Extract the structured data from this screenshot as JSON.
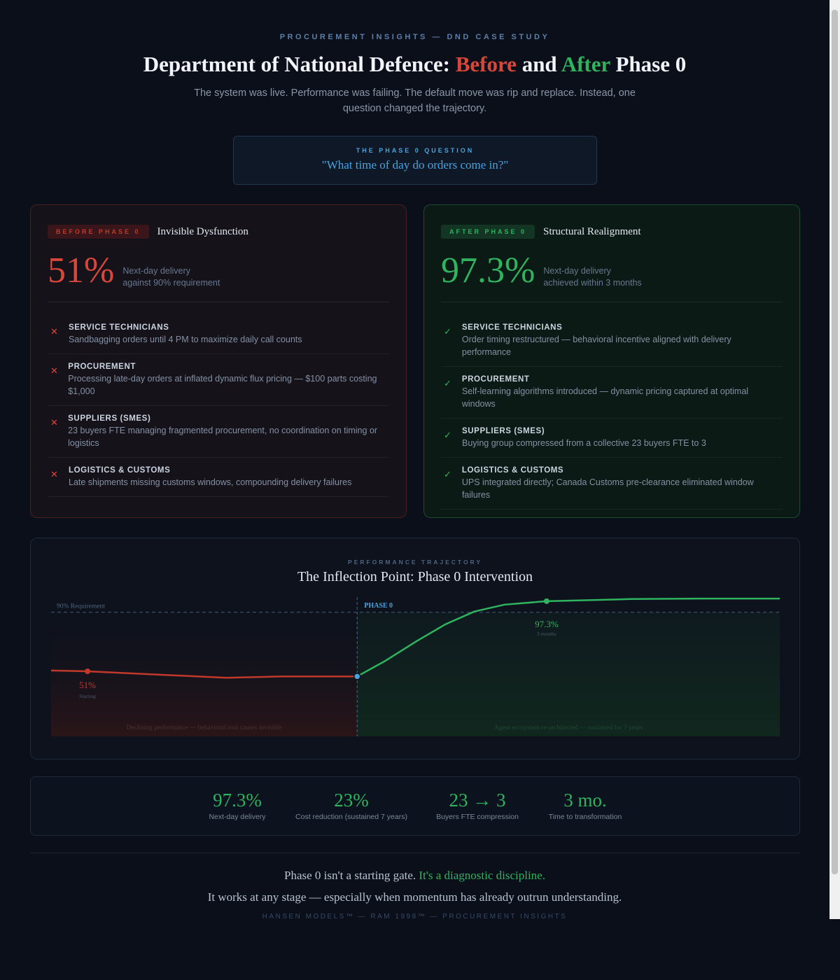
{
  "header": {
    "eyebrow": "PROCUREMENT INSIGHTS — DND CASE STUDY",
    "title_a": "Department of National Defence: ",
    "title_before": "Before",
    "title_and": " and ",
    "title_after": "After",
    "title_end": " Phase 0",
    "subtitle": "The system was live. Performance was failing. The default move was rip and replace. Instead, one question changed the trajectory."
  },
  "question": {
    "label": "THE PHASE 0 QUESTION",
    "text": "\"What time of day do orders come in?\""
  },
  "before": {
    "badge": "BEFORE PHASE 0",
    "title": "Invisible Dysfunction",
    "metric": "51%",
    "desc1": "Next-day delivery",
    "desc2": "against 90% requirement",
    "icon": "x-icon",
    "items": [
      {
        "title": "SERVICE TECHNICIANS",
        "text": "Sandbagging orders until 4 PM to maximize daily call counts"
      },
      {
        "title": "PROCUREMENT",
        "text": "Processing late-day orders at inflated dynamic flux pricing — $100 parts costing $1,000"
      },
      {
        "title": "SUPPLIERS (SMES)",
        "text": "23 buyers FTE managing fragmented procurement, no coordination on timing or logistics"
      },
      {
        "title": "LOGISTICS & CUSTOMS",
        "text": "Late shipments missing customs windows, compounding delivery failures"
      }
    ]
  },
  "after": {
    "badge": "AFTER PHASE 0",
    "title": "Structural Realignment",
    "metric": "97.3%",
    "desc1": "Next-day delivery",
    "desc2": "achieved within 3 months",
    "icon": "check-icon",
    "items": [
      {
        "title": "SERVICE TECHNICIANS",
        "text": "Order timing restructured — behavioral incentive aligned with delivery performance"
      },
      {
        "title": "PROCUREMENT",
        "text": "Self-learning algorithms introduced — dynamic pricing captured at optimal windows"
      },
      {
        "title": "SUPPLIERS (SMES)",
        "text": "Buying group compressed from a collective 23 buyers FTE to 3"
      },
      {
        "title": "LOGISTICS & CUSTOMS",
        "text": "UPS integrated directly; Canada Customs pre-clearance eliminated window failures"
      }
    ]
  },
  "chart_data": {
    "type": "line",
    "eyebrow": "PERFORMANCE TRAJECTORY",
    "title": "The Inflection Point: Phase 0 Intervention",
    "ylim": [
      8,
      100
    ],
    "xlim": [
      0,
      100
    ],
    "requirement": {
      "value": 90,
      "label": "90% Requirement"
    },
    "phase": {
      "x": 42,
      "label": "PHASE 0"
    },
    "series": [
      {
        "name": "before",
        "color": "#c0392b",
        "points": [
          [
            0,
            51.5
          ],
          [
            5,
            51
          ],
          [
            24,
            46.7
          ],
          [
            31.5,
            47.6
          ],
          [
            42,
            47.6
          ]
        ]
      },
      {
        "name": "after",
        "color": "#2fb35f",
        "points": [
          [
            42,
            47.6
          ],
          [
            45.9,
            58
          ],
          [
            50.2,
            71
          ],
          [
            54.1,
            82
          ],
          [
            58.1,
            90.5
          ],
          [
            62.2,
            95
          ],
          [
            68,
            97.3
          ],
          [
            79.5,
            98.7
          ],
          [
            89.1,
            99
          ],
          [
            100,
            99
          ]
        ]
      }
    ],
    "annotations": [
      {
        "x": 5,
        "y": 51,
        "value": "51%",
        "sub": "Starting",
        "color": "#c0392b"
      },
      {
        "x": 68,
        "y": 97.3,
        "value": "97.3%",
        "sub": "3 months",
        "color": "#2fb35f"
      }
    ],
    "region_labels": {
      "before": "Declining performance — behavioral root causes invisible",
      "after": "Agent ecosystem re-architected — sustained for 7 years"
    }
  },
  "stats": [
    {
      "value": "97.3%",
      "label": "Next-day delivery"
    },
    {
      "value": "23%",
      "label": "Cost reduction (sustained 7 years)"
    },
    {
      "value": "23 → 3",
      "label": "Buyers FTE compression"
    },
    {
      "value": "3 mo.",
      "label": "Time to transformation"
    }
  ],
  "closing": {
    "line1a": "Phase 0 isn't a starting gate. ",
    "line1b": "It's a diagnostic discipline.",
    "line2": "It works at any stage — especially when momentum has already outrun understanding.",
    "footer": "HANSEN MODELS™ — RAM 1998™ — PROCUREMENT INSIGHTS"
  }
}
